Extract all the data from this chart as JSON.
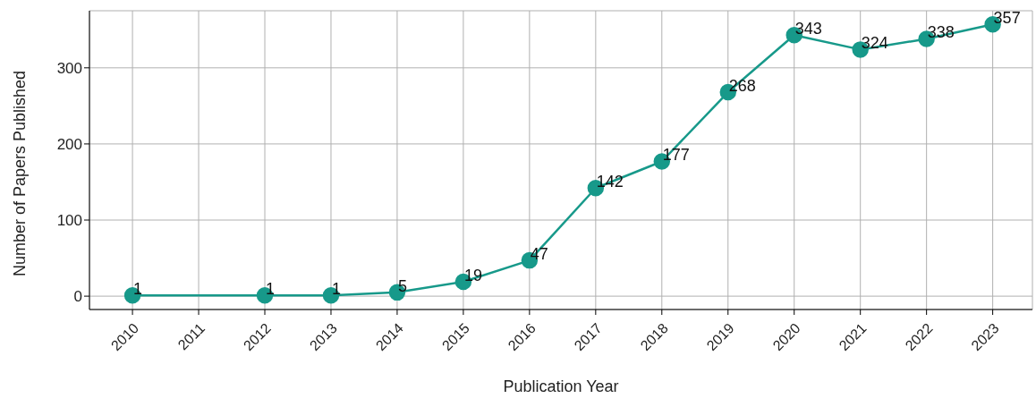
{
  "chart_data": {
    "type": "line",
    "xlabel": "Publication Year",
    "ylabel": "Number of Papers Published",
    "x": [
      2010,
      2012,
      2013,
      2014,
      2015,
      2016,
      2017,
      2018,
      2019,
      2020,
      2021,
      2022,
      2023
    ],
    "series": [
      {
        "color": "#17998a",
        "values": [
          1,
          1,
          1,
          5,
          19,
          47,
          142,
          177,
          268,
          343,
          324,
          338,
          357
        ]
      }
    ],
    "xlim": [
      2009.35,
      2023.6
    ],
    "xticks": [
      2010,
      2011,
      2012,
      2013,
      2014,
      2015,
      2016,
      2017,
      2018,
      2019,
      2020,
      2021,
      2022,
      2023
    ],
    "ylim": [
      -17.5,
      375
    ],
    "yticks": [
      0,
      100,
      200,
      300
    ],
    "grid": true,
    "marker": "circle",
    "line_style": "solid",
    "data_labels": true,
    "legend": false
  }
}
